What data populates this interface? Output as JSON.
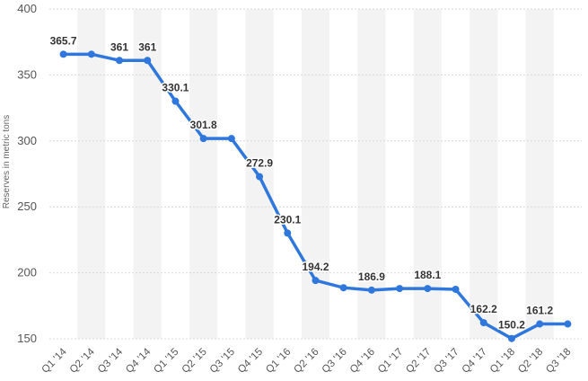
{
  "chart_data": {
    "type": "line",
    "categories": [
      "Q1 '14",
      "Q2 '14",
      "Q3 '14",
      "Q4 '14",
      "Q1 '15",
      "Q2 '15",
      "Q3 '15",
      "Q4 '15",
      "Q1 '16",
      "Q2 '16",
      "Q3 '16",
      "Q4 '16",
      "Q1 '17",
      "Q2 '17",
      "Q3 '17",
      "Q4 '17",
      "Q1 '18",
      "Q2 '18",
      "Q3 '18"
    ],
    "series": [
      {
        "values": [
          365.7,
          365.7,
          361,
          361,
          330.1,
          301.8,
          301.8,
          272.9,
          230.1,
          194.2,
          188.7,
          186.9,
          188.1,
          188.1,
          187.5,
          162.2,
          150.2,
          161.2,
          161.2
        ],
        "labels": [
          "365.7",
          "",
          "361",
          "361",
          "330.1",
          "301.8",
          "",
          "272.9",
          "230.1",
          "194.2",
          "",
          "186.9",
          "",
          "188.1",
          "",
          "162.2",
          "150.2",
          "161.2",
          ""
        ]
      }
    ],
    "xlabel": "",
    "ylabel": "Reserves in metric tons",
    "ylim": [
      150,
      400
    ],
    "yticks": [
      150,
      200,
      250,
      300,
      350,
      400
    ],
    "grid": true,
    "colors": {
      "line": "#2f77dc",
      "band": "#f3f3f3",
      "grid": "#d9d9d9"
    }
  }
}
